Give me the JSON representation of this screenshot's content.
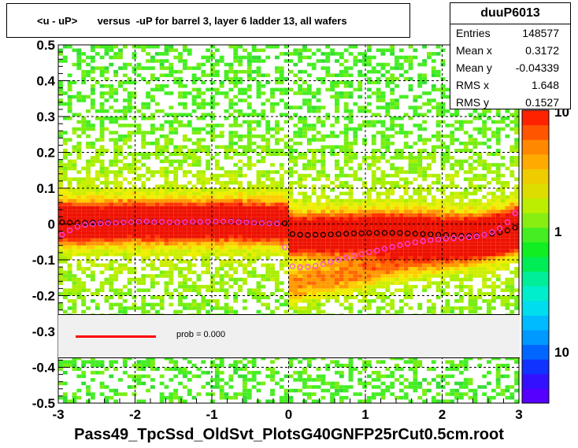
{
  "chart_data": {
    "type": "heatmap",
    "title": "<u - uP>       versus  -uP for barrel 3, layer 6 ladder 13, all wafers",
    "xlabel": "Pass49_TpcSsd_OldSvt_PlotsG40GNFP25rCut0.5cm.root",
    "ylabel": "",
    "xlim": [
      -3,
      3
    ],
    "ylim": [
      -0.5,
      0.5
    ],
    "x_ticks": [
      "-3",
      "-2",
      "-1",
      "0",
      "1",
      "2",
      "3"
    ],
    "y_ticks": [
      "-0.5",
      "-0.4",
      "-0.3",
      "-0.2",
      "-0.1",
      "0",
      "0.1",
      "0.2",
      "0.3",
      "0.4",
      "0.5"
    ],
    "z_scale": "log",
    "z_ticks": [
      "10",
      "1",
      "10"
    ],
    "grid": true,
    "colors": {
      "profile_black": "#000000",
      "profile_magenta": "#ff44ff",
      "fit_line": "#ff0000"
    },
    "series": [
      {
        "name": "",
        "marker": "open-circle",
        "color": "#000000",
        "x": [
          -2.95,
          -2.85,
          -2.75,
          -2.65,
          -2.55,
          -2.45,
          -2.35,
          -2.25,
          -2.15,
          -2.05,
          -1.95,
          -1.85,
          -1.75,
          -1.65,
          -1.55,
          -1.45,
          -1.35,
          -1.25,
          -1.15,
          -1.05,
          -0.95,
          -0.85,
          -0.75,
          -0.65,
          -0.55,
          -0.45,
          -0.35,
          -0.25,
          -0.15,
          -0.05,
          0.05,
          0.15,
          0.25,
          0.35,
          0.45,
          0.55,
          0.65,
          0.75,
          0.85,
          0.95,
          1.05,
          1.15,
          1.25,
          1.35,
          1.45,
          1.55,
          1.65,
          1.75,
          1.85,
          1.95,
          2.05,
          2.15,
          2.25,
          2.35,
          2.45,
          2.55,
          2.65,
          2.75,
          2.85,
          2.95
        ],
        "y": [
          0.005,
          0.004,
          0.003,
          0.003,
          0.004,
          0.004,
          0.005,
          0.005,
          0.006,
          0.007,
          0.008,
          0.007,
          0.007,
          0.006,
          0.005,
          0.005,
          0.005,
          0.005,
          0.006,
          0.006,
          0.007,
          0.007,
          0.008,
          0.007,
          0.006,
          0.005,
          0.004,
          0.003,
          0.003,
          0.002,
          -0.028,
          -0.03,
          -0.031,
          -0.03,
          -0.03,
          -0.029,
          -0.028,
          -0.027,
          -0.026,
          -0.026,
          -0.025,
          -0.025,
          -0.025,
          -0.025,
          -0.025,
          -0.026,
          -0.027,
          -0.028,
          -0.029,
          -0.03,
          -0.031,
          -0.032,
          -0.033,
          -0.033,
          -0.032,
          -0.03,
          -0.027,
          -0.023,
          -0.018,
          -0.01
        ]
      },
      {
        "name": "",
        "marker": "open-circle",
        "color": "#ff44ff",
        "x": [
          -2.95,
          -2.85,
          -2.75,
          -2.65,
          -2.55,
          -2.45,
          -2.35,
          -2.25,
          -2.15,
          -2.05,
          -1.95,
          -1.85,
          -1.75,
          -1.65,
          -1.55,
          -1.45,
          -1.35,
          -1.25,
          -1.15,
          -1.05,
          -0.95,
          -0.85,
          -0.75,
          -0.65,
          -0.55,
          -0.45,
          -0.35,
          -0.25,
          -0.15,
          -0.05,
          0.05,
          0.15,
          0.25,
          0.35,
          0.45,
          0.55,
          0.65,
          0.75,
          0.85,
          0.95,
          1.05,
          1.15,
          1.25,
          1.35,
          1.45,
          1.55,
          1.65,
          1.75,
          1.85,
          1.95,
          2.05,
          2.15,
          2.25,
          2.35,
          2.45,
          2.55,
          2.65,
          2.75,
          2.85,
          2.95
        ],
        "y": [
          -0.03,
          -0.018,
          -0.008,
          -0.002,
          0.0,
          0.002,
          0.003,
          0.004,
          0.005,
          0.006,
          0.007,
          0.007,
          0.006,
          0.006,
          0.005,
          0.005,
          0.005,
          0.006,
          0.006,
          0.006,
          0.007,
          0.007,
          0.007,
          0.006,
          0.005,
          0.004,
          0.003,
          0.002,
          0.002,
          -0.065,
          -0.118,
          -0.121,
          -0.12,
          -0.117,
          -0.112,
          -0.106,
          -0.1,
          -0.094,
          -0.089,
          -0.084,
          -0.079,
          -0.074,
          -0.069,
          -0.064,
          -0.059,
          -0.055,
          -0.051,
          -0.048,
          -0.045,
          -0.043,
          -0.041,
          -0.04,
          -0.039,
          -0.037,
          -0.034,
          -0.03,
          -0.023,
          -0.012,
          0.005,
          0.03
        ]
      }
    ],
    "fit": {
      "prob_label": "prob = 0.000"
    }
  },
  "stats": {
    "name": "duuP6013",
    "rows": [
      {
        "key": "Entries",
        "value": "148577"
      },
      {
        "key": "Mean x",
        "value": "0.3172"
      },
      {
        "key": "Mean y",
        "value": "-0.04339"
      },
      {
        "key": "RMS x",
        "value": "1.648"
      },
      {
        "key": "RMS y",
        "value": "0.1527"
      }
    ]
  }
}
